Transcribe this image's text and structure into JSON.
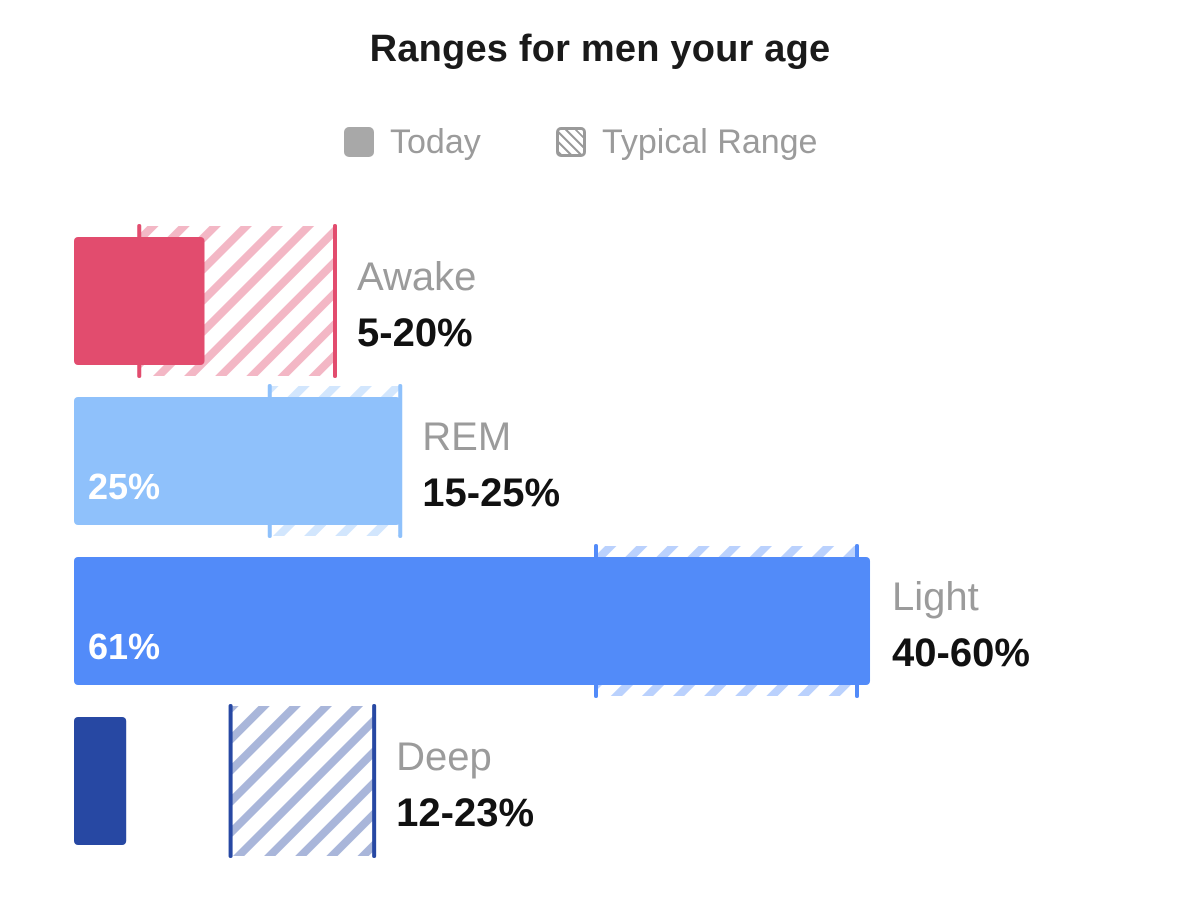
{
  "chart_data": {
    "type": "bar",
    "orientation": "horizontal",
    "title": "Ranges for men your age",
    "legend": [
      "Today",
      "Typical Range"
    ],
    "legend_placement": "top",
    "unit": "%",
    "grid": false,
    "categories": [
      "Awake",
      "REM",
      "Light",
      "Deep"
    ],
    "series": [
      {
        "name": "Today",
        "values": [
          10,
          25,
          61,
          4
        ]
      },
      {
        "name": "Typical Range",
        "ranges": [
          [
            5,
            20
          ],
          [
            15,
            25
          ],
          [
            40,
            60
          ],
          [
            12,
            23
          ]
        ]
      }
    ],
    "range_labels": [
      "5-20%",
      "15-25%",
      "40-60%",
      "12-23%"
    ],
    "value_labels": [
      "",
      "25%",
      "61%",
      ""
    ],
    "xlim": [
      0,
      61
    ],
    "colors": [
      "#e24c6e",
      "#8fc1fb",
      "#528bf9",
      "#2748a3"
    ]
  }
}
